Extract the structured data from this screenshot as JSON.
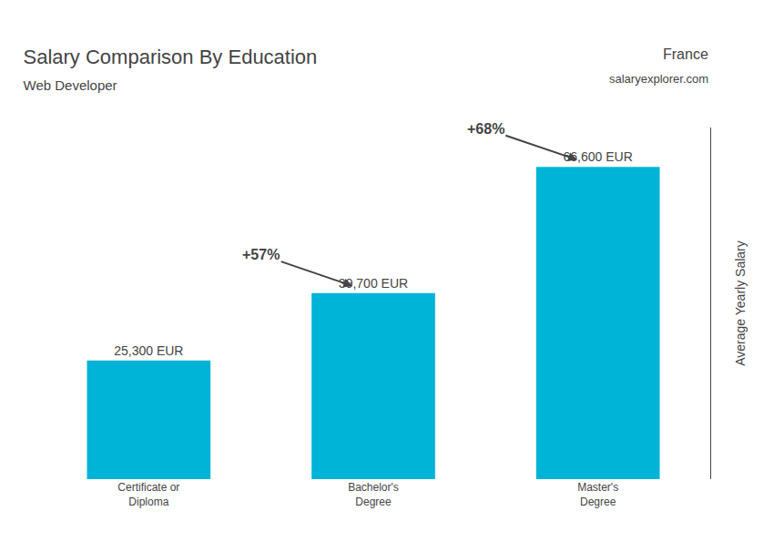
{
  "chart_data": {
    "type": "bar",
    "title": "Salary Comparison By Education",
    "subtitle": "Web Developer",
    "categories": [
      "Certificate or\nDiploma",
      "Bachelor's\nDegree",
      "Master's\nDegree"
    ],
    "values": [
      25300,
      39700,
      66600
    ],
    "value_labels": [
      "25,300 EUR",
      "39,700 EUR",
      "66,600 EUR"
    ],
    "data_labels": true,
    "color": "#00b4d8",
    "ylabel": "Average Yearly Salary",
    "ylim": [
      0,
      75000
    ],
    "tick_labels": "x",
    "grid": false,
    "annotations": [
      {
        "text": "France"
      },
      {
        "text": "salaryexplorer.com"
      },
      {
        "text": "+57%"
      },
      {
        "text": "+68%"
      }
    ]
  }
}
